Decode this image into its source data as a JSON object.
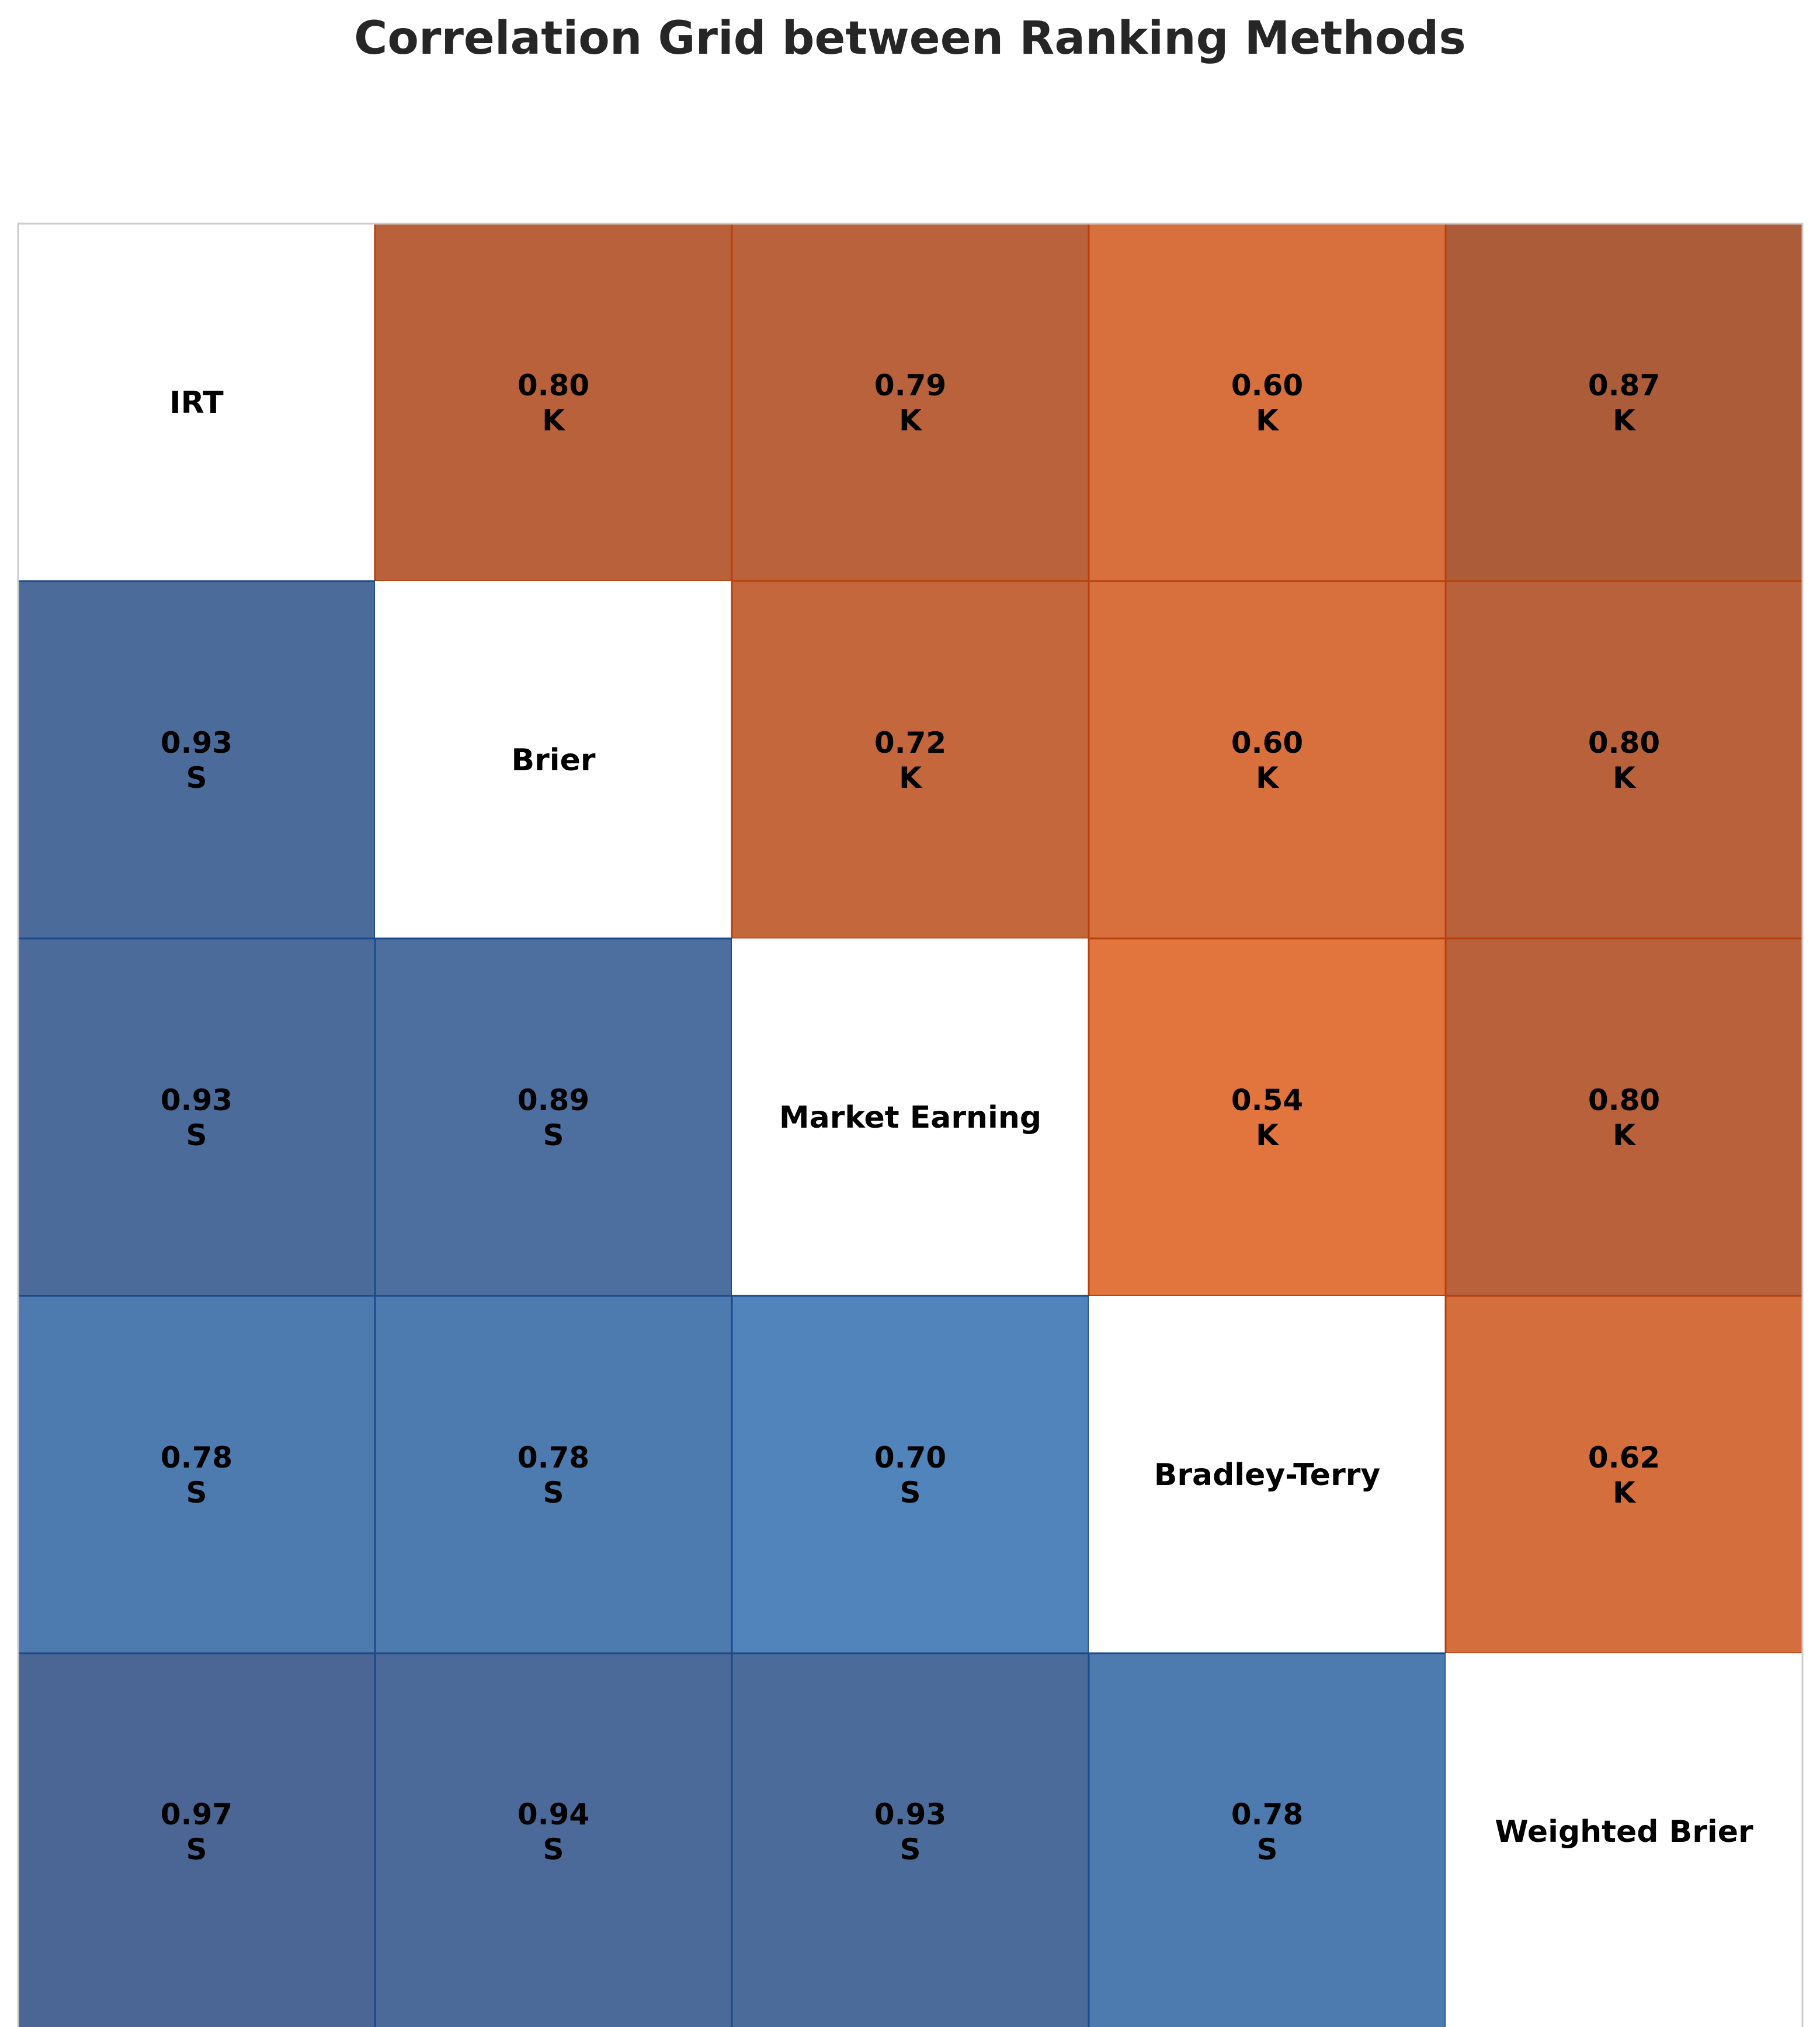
{
  "chart_data": {
    "type": "heatmap",
    "title": "Correlation Grid between Ranking Methods",
    "methods": [
      "IRT",
      "Brier",
      "Market Earning",
      "Bradley-Terry",
      "Weighted Brier"
    ],
    "upper_triangle_label": "K",
    "lower_triangle_label": "S",
    "kendall_upper": [
      [
        null,
        0.8,
        0.79,
        0.6,
        0.87
      ],
      [
        null,
        null,
        0.72,
        0.6,
        0.8
      ],
      [
        null,
        null,
        null,
        0.54,
        0.8
      ],
      [
        null,
        null,
        null,
        null,
        0.62
      ],
      [
        null,
        null,
        null,
        null,
        null
      ]
    ],
    "spearman_lower": [
      [
        null,
        null,
        null,
        null,
        null
      ],
      [
        0.93,
        null,
        null,
        null,
        null
      ],
      [
        0.93,
        0.89,
        null,
        null,
        null
      ],
      [
        0.78,
        0.78,
        0.7,
        null,
        null
      ],
      [
        0.97,
        0.94,
        0.93,
        0.78,
        null
      ]
    ],
    "legend": "none",
    "grid": false
  },
  "colors": {
    "kendall_high": "#a85a3a",
    "kendall_low": "#e8773e",
    "kendall_border": "#b8400e",
    "spearman_high": "#4a6390",
    "spearman_low": "#5189c2",
    "spearman_border": "#1a4a8a",
    "diagonal": "#ffffff",
    "frame": "#cccccc"
  }
}
